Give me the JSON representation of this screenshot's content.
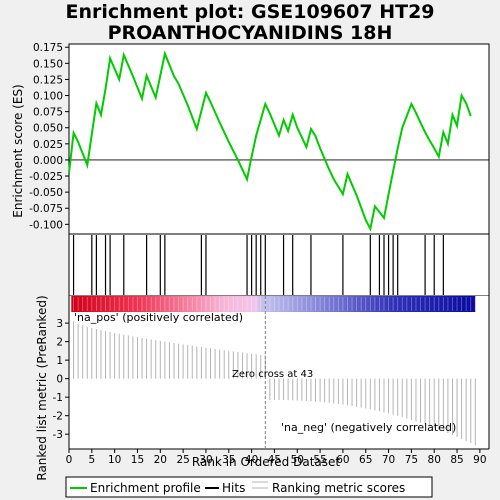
{
  "title_lines": [
    "Enrichment plot: GSE109607 HT29",
    "PROANTHOCYANIDINS 18H"
  ],
  "colors": {
    "es_line": "#00cc00",
    "hits": "#000000",
    "metric": "#b4b4b4",
    "pos_label": "#d40000",
    "neg_label": "#0000cc",
    "zero_line": "#808080"
  },
  "chart_data": {
    "type": "line",
    "es_panel": {
      "ylabel": "Enrichment score (ES)",
      "ylim": [
        -0.115,
        0.18
      ],
      "yticks": [
        "0.175",
        "0.150",
        "0.125",
        "0.100",
        "0.075",
        "0.050",
        "0.025",
        "0.000",
        "-0.025",
        "-0.050",
        "-0.075",
        "-0.100"
      ],
      "series": [
        {
          "name": "Enrichment profile",
          "x": [
            0,
            1,
            2,
            4,
            5,
            6,
            7,
            8,
            9,
            11,
            12,
            14,
            16,
            17,
            19,
            21,
            23,
            24,
            26,
            28,
            30,
            31,
            33,
            35,
            37,
            39,
            40,
            41,
            43,
            44,
            46,
            47,
            48,
            49,
            50,
            52,
            53,
            54,
            55,
            57,
            58,
            60,
            61,
            63,
            65,
            66,
            67,
            69,
            70,
            72,
            73,
            75,
            76,
            77,
            78,
            79,
            80,
            81,
            82,
            83,
            84,
            85,
            86,
            87,
            88
          ],
          "y": [
            -0.02,
            0.042,
            0.028,
            -0.008,
            0.04,
            0.088,
            0.07,
            0.11,
            0.158,
            0.125,
            0.163,
            0.13,
            0.095,
            0.131,
            0.097,
            0.165,
            0.13,
            0.118,
            0.085,
            0.048,
            0.104,
            0.09,
            0.058,
            0.028,
            0.0,
            -0.03,
            0.005,
            0.038,
            0.087,
            0.072,
            0.038,
            0.062,
            0.045,
            0.07,
            0.05,
            0.02,
            0.048,
            0.037,
            0.018,
            -0.015,
            -0.03,
            -0.053,
            -0.022,
            -0.055,
            -0.093,
            -0.107,
            -0.072,
            -0.09,
            -0.053,
            0.018,
            0.05,
            0.087,
            0.073,
            0.058,
            0.043,
            0.03,
            0.018,
            0.005,
            0.043,
            0.025,
            0.07,
            0.053,
            0.1,
            0.088,
            0.068
          ]
        }
      ]
    },
    "hits": {
      "name": "Hits",
      "x": [
        1,
        5,
        6,
        8,
        9,
        12,
        17,
        20,
        21,
        29,
        30,
        39,
        40,
        41,
        42,
        43,
        47,
        49,
        53,
        60,
        66,
        68,
        69,
        70,
        71,
        72,
        78,
        80,
        82
      ]
    },
    "metric_panel": {
      "ylabel": "Ranked list metric (PreRanked)",
      "xlabel": "Rank in Ordered Dataset",
      "ylim": [
        -3.8,
        3.6
      ],
      "yticks": [
        "3",
        "2",
        "1",
        "0",
        "-1",
        "-2",
        "-3"
      ],
      "xlim": [
        0,
        92
      ],
      "xticks": [
        "0",
        "5",
        "10",
        "15",
        "20",
        "25",
        "30",
        "35",
        "40",
        "45",
        "50",
        "55",
        "60",
        "65",
        "70",
        "75",
        "80",
        "85",
        "90"
      ],
      "series": {
        "name": "Ranking metric scores",
        "first": 3.1,
        "mid_pos_end": 1.25,
        "zero_rank": 43,
        "mid_neg_start": -1.15,
        "last": -3.6,
        "n": 89
      },
      "zero_cross_label": "Zero cross at 43",
      "pos_label": "'na_pos' (positively correlated)",
      "neg_label": "'na_neg' (negatively correlated)"
    },
    "legend": {
      "placement": "bottom",
      "items": [
        "Enrichment profile",
        "Hits",
        "Ranking metric scores"
      ]
    }
  }
}
